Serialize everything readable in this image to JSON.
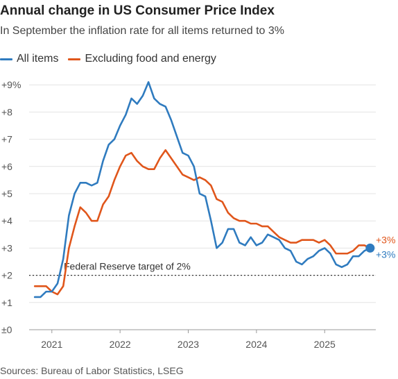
{
  "chart_data": {
    "type": "line",
    "title": "Annual change in US Consumer Price Index",
    "subtitle": "In September the inflation rate for all items returned to 3%",
    "xlabel": "",
    "ylabel": "",
    "ylim": [
      0,
      9.5
    ],
    "yticks": [
      0,
      1,
      2,
      3,
      4,
      5,
      6,
      7,
      8,
      9
    ],
    "ytick_labels": [
      "±0",
      "+1",
      "+2",
      "+3",
      "+4",
      "+5",
      "+6",
      "+7",
      "+8",
      "+9%"
    ],
    "xlim": [
      "2020-09",
      "2025-10"
    ],
    "xticks": [
      "2021-01",
      "2022-01",
      "2023-01",
      "2024-01",
      "2025-01"
    ],
    "xtick_labels": [
      "2021",
      "2022",
      "2023",
      "2024",
      "2025"
    ],
    "grid": true,
    "legend_position": "top-left",
    "x": [
      "2020-10",
      "2020-11",
      "2020-12",
      "2021-01",
      "2021-02",
      "2021-03",
      "2021-04",
      "2021-05",
      "2021-06",
      "2021-07",
      "2021-08",
      "2021-09",
      "2021-10",
      "2021-11",
      "2021-12",
      "2022-01",
      "2022-02",
      "2022-03",
      "2022-04",
      "2022-05",
      "2022-06",
      "2022-07",
      "2022-08",
      "2022-09",
      "2022-10",
      "2022-11",
      "2022-12",
      "2023-01",
      "2023-02",
      "2023-03",
      "2023-04",
      "2023-05",
      "2023-06",
      "2023-07",
      "2023-08",
      "2023-09",
      "2023-10",
      "2023-11",
      "2023-12",
      "2024-01",
      "2024-02",
      "2024-03",
      "2024-04",
      "2024-05",
      "2024-06",
      "2024-07",
      "2024-08",
      "2024-09",
      "2024-10",
      "2024-11",
      "2024-12",
      "2025-01",
      "2025-02",
      "2025-03",
      "2025-04",
      "2025-05",
      "2025-06",
      "2025-07",
      "2025-08",
      "2025-09"
    ],
    "series": [
      {
        "name": "All items",
        "color": "#2f7bbf",
        "values": [
          1.2,
          1.2,
          1.4,
          1.4,
          1.7,
          2.6,
          4.2,
          5.0,
          5.4,
          5.4,
          5.3,
          5.4,
          6.2,
          6.8,
          7.0,
          7.5,
          7.9,
          8.5,
          8.3,
          8.6,
          9.1,
          8.5,
          8.3,
          8.2,
          7.7,
          7.1,
          6.5,
          6.4,
          6.0,
          5.0,
          4.9,
          4.0,
          3.0,
          3.2,
          3.7,
          3.7,
          3.2,
          3.1,
          3.4,
          3.1,
          3.2,
          3.5,
          3.4,
          3.3,
          3.0,
          2.9,
          2.5,
          2.4,
          2.6,
          2.7,
          2.9,
          3.0,
          2.8,
          2.4,
          2.3,
          2.4,
          2.7,
          2.7,
          2.9,
          3.0
        ],
        "end_label": "+3%"
      },
      {
        "name": "Excluding food and energy",
        "color": "#e0561b",
        "values": [
          1.6,
          1.6,
          1.6,
          1.4,
          1.3,
          1.6,
          3.0,
          3.8,
          4.5,
          4.3,
          4.0,
          4.0,
          4.6,
          4.9,
          5.5,
          6.0,
          6.4,
          6.5,
          6.2,
          6.0,
          5.9,
          5.9,
          6.3,
          6.6,
          6.3,
          6.0,
          5.7,
          5.6,
          5.5,
          5.6,
          5.5,
          5.3,
          4.8,
          4.7,
          4.3,
          4.1,
          4.0,
          4.0,
          3.9,
          3.9,
          3.8,
          3.8,
          3.6,
          3.4,
          3.3,
          3.2,
          3.2,
          3.3,
          3.3,
          3.3,
          3.2,
          3.3,
          3.1,
          2.8,
          2.8,
          2.8,
          2.9,
          3.1,
          3.1,
          3.0
        ],
        "end_label": "+3%"
      }
    ],
    "reference_line": {
      "value": 2,
      "label": "Federal Reserve target of 2%"
    }
  },
  "source": "Sources: Bureau of Labor Statistics, LSEG"
}
